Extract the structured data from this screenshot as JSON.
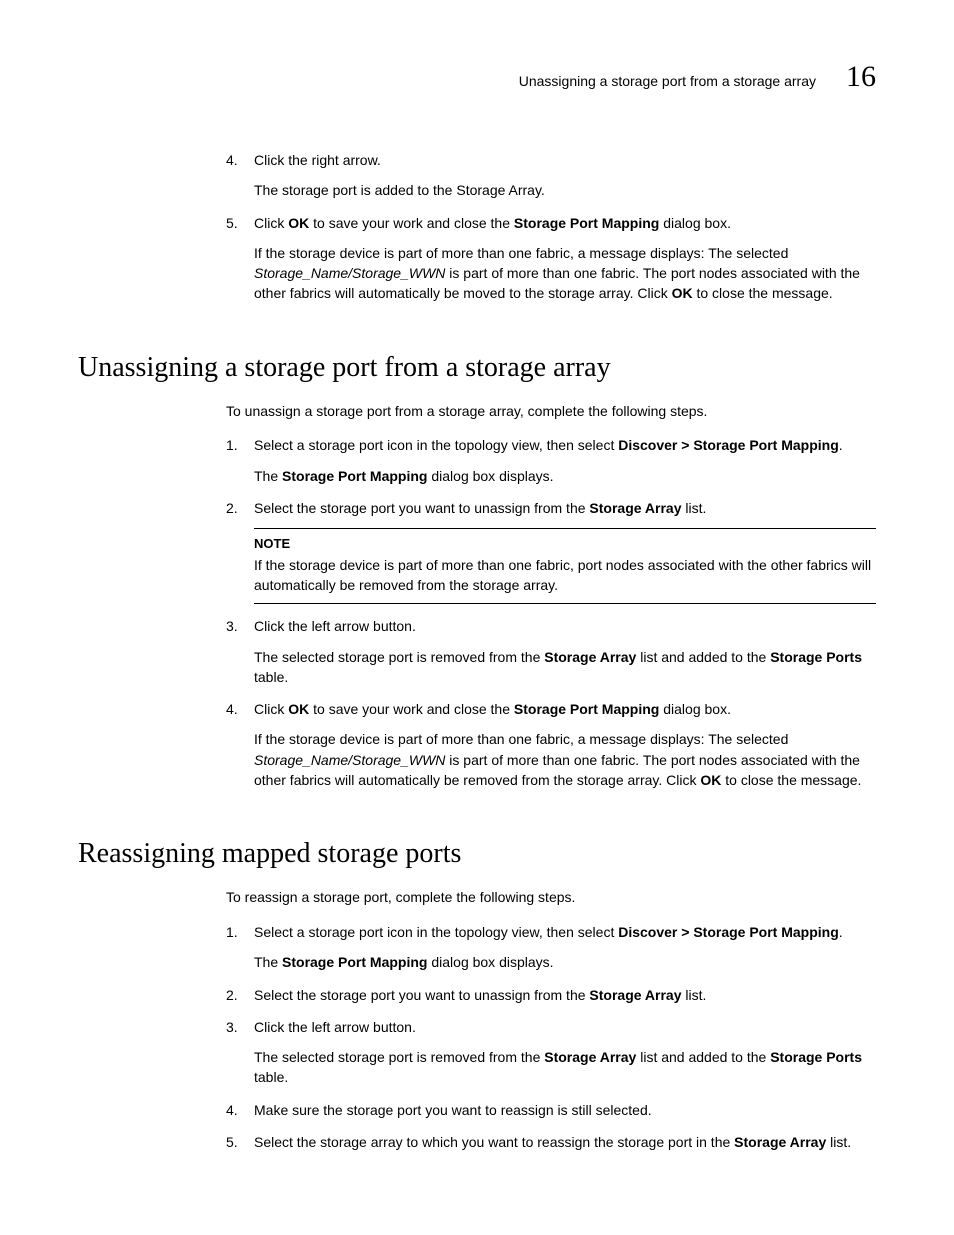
{
  "header": {
    "text": "Unassigning a storage port from a storage array",
    "chapter": "16"
  },
  "top_steps": {
    "s4": {
      "num": "4.",
      "text": "Click the right arrow.",
      "sub": "The storage port is added to the Storage Array."
    },
    "s5": {
      "num": "5.",
      "pre": "Click ",
      "b1": "OK",
      "mid": " to save your work and close the ",
      "b2": "Storage Port Mapping",
      "post": " dialog box.",
      "sub_pre": "If the storage device is part of more than one fabric, a message displays: The selected ",
      "sub_it": "Storage_Name/Storage_WWN",
      "sub_mid": " is part of more than one fabric. The port nodes associated with the other fabrics will automatically be moved to the storage array. Click ",
      "sub_b": "OK",
      "sub_post": " to close the message."
    }
  },
  "sec1": {
    "title": "Unassigning a storage port from a storage array",
    "intro": "To unassign a storage port from a storage array, complete the following steps.",
    "s1": {
      "num": "1.",
      "pre": "Select a storage port icon in the topology view, then select ",
      "b": "Discover > Storage Port Mapping",
      "post": ".",
      "sub_pre": "The ",
      "sub_b": "Storage Port Mapping",
      "sub_post": " dialog box displays."
    },
    "s2": {
      "num": "2.",
      "pre": "Select the storage port you want to unassign from the ",
      "b": "Storage Array",
      "post": " list.",
      "note_label": "NOTE",
      "note_text": "If the storage device is part of more than one fabric, port nodes associated with the other fabrics will automatically be removed from the storage array."
    },
    "s3": {
      "num": "3.",
      "text": "Click the left arrow button.",
      "sub_pre": "The selected storage port is removed from the ",
      "sub_b1": "Storage Array",
      "sub_mid": " list and added to the ",
      "sub_b2": "Storage Ports",
      "sub_post": " table."
    },
    "s4": {
      "num": "4.",
      "pre": "Click ",
      "b1": "OK",
      "mid": " to save your work and close the ",
      "b2": "Storage Port Mapping",
      "post": " dialog box.",
      "sub_pre": "If the storage device is part of more than one fabric, a message displays: The selected ",
      "sub_it": "Storage_Name/Storage_WWN",
      "sub_mid": " is part of more than one fabric. The port nodes associated with the other fabrics will automatically be removed from the storage array. Click ",
      "sub_b": "OK",
      "sub_post": " to close the message."
    }
  },
  "sec2": {
    "title": "Reassigning mapped storage ports",
    "intro": "To reassign a storage port, complete the following steps.",
    "s1": {
      "num": "1.",
      "pre": "Select a storage port icon in the topology view, then select ",
      "b": "Discover > Storage Port Mapping",
      "post": ".",
      "sub_pre": "The ",
      "sub_b": "Storage Port Mapping",
      "sub_post": " dialog box displays."
    },
    "s2": {
      "num": "2.",
      "pre": "Select the storage port you want to unassign from the ",
      "b": "Storage Array",
      "post": " list."
    },
    "s3": {
      "num": "3.",
      "text": "Click the left arrow button.",
      "sub_pre": "The selected storage port is removed from the ",
      "sub_b1": "Storage Array",
      "sub_mid": " list and added to the ",
      "sub_b2": "Storage Ports",
      "sub_post": " table."
    },
    "s4": {
      "num": "4.",
      "text": "Make sure the storage port you want to reassign is still selected."
    },
    "s5": {
      "num": "5.",
      "pre": "Select the storage array to which you want to reassign the storage port in the ",
      "b": "Storage Array",
      "post": " list."
    }
  }
}
